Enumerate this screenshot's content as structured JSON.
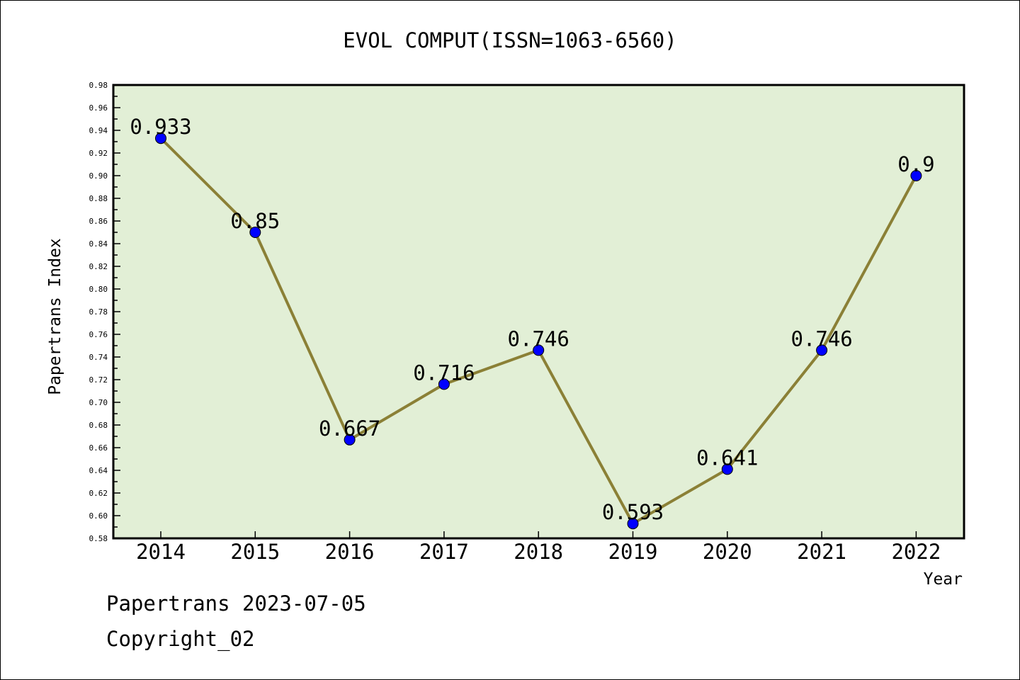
{
  "footer": {
    "line1": "Papertrans 2023-07-05",
    "line2": "Copyright_02"
  },
  "colors": {
    "plot_background": "#e2efd6",
    "line": "#8b8036",
    "marker": "#0000ff",
    "axis": "#000000"
  },
  "chart_data": {
    "type": "line",
    "title": "EVOL COMPUT(ISSN=1063-6560)",
    "xlabel": "Year",
    "ylabel": "Papertrans Index",
    "categories": [
      "2014",
      "2015",
      "2016",
      "2017",
      "2018",
      "2019",
      "2020",
      "2021",
      "2022"
    ],
    "series": [
      {
        "values": [
          0.933,
          0.85,
          0.667,
          0.716,
          0.746,
          0.593,
          0.641,
          0.746,
          0.9
        ],
        "data_labels": [
          "0.933",
          "0.85",
          "0.667",
          "0.716",
          "0.746",
          "0.593",
          "0.641",
          "0.746",
          "0.9"
        ]
      }
    ],
    "ylim": [
      0.58,
      0.98
    ],
    "y_ticks": [
      "0.58",
      "0.60",
      "0.62",
      "0.64",
      "0.66",
      "0.68",
      "0.70",
      "0.72",
      "0.74",
      "0.76",
      "0.78",
      "0.80",
      "0.82",
      "0.84",
      "0.86",
      "0.88",
      "0.90",
      "0.92",
      "0.94",
      "0.96",
      "0.98"
    ],
    "grid": false,
    "legend": "none"
  }
}
